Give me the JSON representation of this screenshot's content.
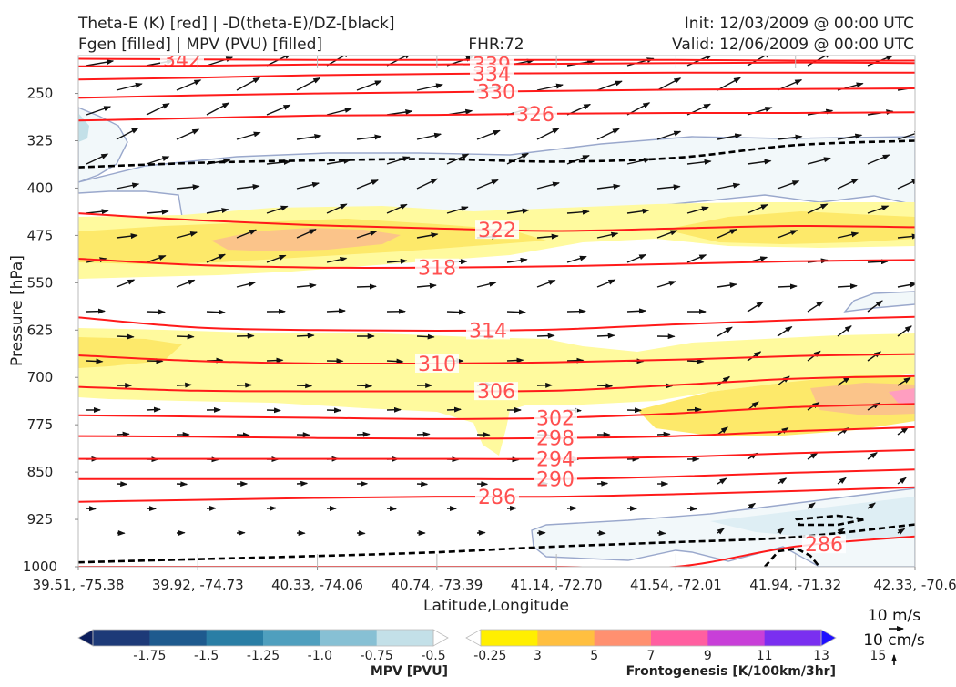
{
  "header": {
    "title_left_1": "Theta-E (K) [red] | -D(theta-E)/DZ-[black]",
    "title_left_2": "Fgen [filled] | MPV (PVU) [filled]",
    "title_center": "FHR:72",
    "title_right_1": "Init: 12/03/2009 @ 00:00 UTC",
    "title_right_2": "Valid: 12/06/2009 @ 00:00 UTC"
  },
  "chart_data": {
    "type": "cross-section",
    "xlabel": "Latitude,Longitude",
    "ylabel": "Pressure [hPa]",
    "x_ticks": [
      "39.51, -75.38",
      "39.92, -74.73",
      "40.33, -74.06",
      "40.74, -73.39",
      "41.14, -72.70",
      "41.54, -72.01",
      "41.94, -71.32",
      "42.33, -70.6"
    ],
    "y_ticks": [
      250,
      325,
      400,
      475,
      550,
      625,
      700,
      775,
      850,
      925,
      1000
    ],
    "ylim": [
      1000,
      190
    ],
    "y_inverted": true,
    "theta_e_contours": [
      {
        "label": "342",
        "values": [
          195,
          196,
          197,
          197,
          197,
          197,
          198,
          198
        ]
      },
      {
        "label": "339",
        "values": [
          207,
          206,
          204,
          204,
          203,
          202,
          201,
          202
        ]
      },
      {
        "label": "334",
        "values": [
          228,
          225,
          221,
          219,
          218,
          217,
          217,
          217
        ]
      },
      {
        "label": "330",
        "values": [
          257,
          253,
          250,
          248,
          246,
          244,
          243,
          242
        ]
      },
      {
        "label": "326",
        "values": [
          293,
          289,
          285,
          284,
          282,
          281,
          281,
          280
        ]
      },
      {
        "label": "322",
        "values": [
          440,
          451,
          459,
          464,
          468,
          464,
          460,
          462
        ]
      },
      {
        "label": "318",
        "values": [
          512,
          522,
          526,
          526,
          524,
          520,
          516,
          514
        ]
      },
      {
        "label": "314",
        "values": [
          605,
          621,
          625,
          626,
          624,
          616,
          609,
          604
        ]
      },
      {
        "label": "310",
        "values": [
          665,
          674,
          678,
          678,
          676,
          672,
          666,
          663
        ]
      },
      {
        "label": "306",
        "values": [
          715,
          721,
          722,
          722,
          721,
          712,
          702,
          698
        ]
      },
      {
        "label": "302",
        "values": [
          760,
          762,
          764,
          766,
          764,
          757,
          747,
          742
        ]
      },
      {
        "label": "298",
        "values": [
          793,
          794,
          796,
          797,
          796,
          793,
          785,
          779
        ]
      },
      {
        "label": "294",
        "values": [
          829,
          829,
          829,
          829,
          829,
          826,
          820,
          815
        ]
      },
      {
        "label": "290",
        "values": [
          861,
          861,
          861,
          861,
          861,
          857,
          851,
          846
        ]
      },
      {
        "label": "286",
        "values": [
          897,
          894,
          891,
          889,
          889,
          885,
          880,
          874
        ]
      },
      {
        "label": "286",
        "values": [
          1000,
          1000,
          1000,
          1000,
          1000,
          1000,
          968,
          952
        ]
      }
    ],
    "dthetae_dz_zero_contours": [
      {
        "label": "",
        "values": [
          367,
          360,
          356,
          354,
          358,
          352,
          332,
          325
        ]
      },
      {
        "label": "",
        "values": [
          993,
          988,
          983,
          977,
          968,
          961,
          953,
          933
        ]
      }
    ],
    "mpv_legend": {
      "title": "MPV [PVU]",
      "ticks": [
        "-1.75",
        "-1.5",
        "-1.25",
        "-1.0",
        "-0.75",
        "-0.5",
        "-0.25"
      ],
      "colors": [
        "#0c1e5c",
        "#1d3a78",
        "#1e5a8e",
        "#2a7ea5",
        "#4f9fbe",
        "#87c0d4",
        "#c3e0e8",
        "#ffffff"
      ]
    },
    "fgen_legend": {
      "title": "Frontogenesis [K/100km/3hr]",
      "ticks": [
        "3",
        "5",
        "7",
        "9",
        "11",
        "13",
        "15"
      ],
      "colors": [
        "#ffffff",
        "#ffef00",
        "#ffbf40",
        "#ff9070",
        "#ff5fa0",
        "#c83fd8",
        "#7a2ff0",
        "#1f10ff"
      ]
    },
    "vector_keys": [
      "10 m/s",
      "10 cm/s"
    ],
    "colors": {
      "theta_e": "#ff1a1a",
      "theta_e_label": "#ff5050",
      "dthetae_dz": "#000000",
      "mpv_outline": "#9aa8cc",
      "mpv_fill": "#f2f8fa",
      "fgen_light": "#fffa9e",
      "fgen_mid": "#fde96a",
      "fgen_high": "#fbc48a"
    }
  }
}
